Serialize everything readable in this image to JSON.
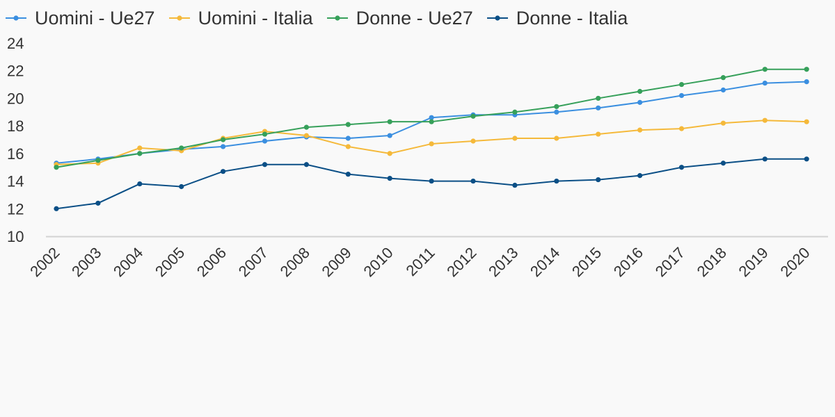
{
  "chart_data": {
    "type": "line",
    "title": "",
    "xlabel": "",
    "ylabel": "",
    "ylim": [
      10,
      24
    ],
    "yticks": [
      "10",
      "12",
      "14",
      "16",
      "18",
      "20",
      "22",
      "24"
    ],
    "categories": [
      "2002",
      "2003",
      "2004",
      "2005",
      "2006",
      "2007",
      "2008",
      "2009",
      "2010",
      "2011",
      "2012",
      "2013",
      "2014",
      "2015",
      "2016",
      "2017",
      "2018",
      "2019",
      "2020"
    ],
    "grid": false,
    "legend_position": "top-left",
    "series": [
      {
        "name": "Uomini - Ue27",
        "color": "#3b8fe0",
        "values": [
          15.3,
          15.6,
          16.0,
          16.3,
          16.5,
          16.9,
          17.2,
          17.1,
          17.3,
          18.6,
          18.8,
          18.8,
          19.0,
          19.3,
          19.7,
          20.2,
          20.6,
          21.1,
          21.2
        ]
      },
      {
        "name": "Uomini - Italia",
        "color": "#f5b93a",
        "values": [
          15.2,
          15.3,
          16.4,
          16.2,
          17.1,
          17.6,
          17.3,
          16.5,
          16.0,
          16.7,
          16.9,
          17.1,
          17.1,
          17.4,
          17.7,
          17.8,
          18.2,
          18.4,
          18.3
        ]
      },
      {
        "name": "Donne - Ue27",
        "color": "#36a05a",
        "values": [
          15.0,
          15.5,
          16.0,
          16.4,
          17.0,
          17.4,
          17.9,
          18.1,
          18.3,
          18.3,
          18.7,
          19.0,
          19.4,
          20.0,
          20.5,
          21.0,
          21.5,
          22.1,
          22.1
        ]
      },
      {
        "name": "Donne - Italia",
        "color": "#0b4f86",
        "values": [
          12.0,
          12.4,
          13.8,
          13.6,
          14.7,
          15.2,
          15.2,
          14.5,
          14.2,
          14.0,
          14.0,
          13.7,
          14.0,
          14.1,
          14.4,
          15.0,
          15.3,
          15.6,
          15.6
        ]
      }
    ]
  }
}
